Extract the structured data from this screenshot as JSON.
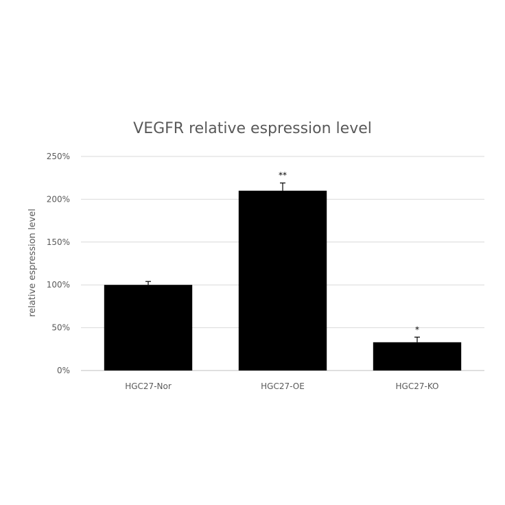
{
  "chart_data": {
    "type": "bar",
    "title": "VEGFR relative espression level",
    "xlabel": "",
    "ylabel": "relative espression level",
    "categories": [
      "HGC27-Nor",
      "HGC27-OE",
      "HGC27-KO"
    ],
    "values": [
      100,
      210,
      33
    ],
    "error": [
      4,
      9,
      6
    ],
    "significance": [
      "",
      "**",
      "*"
    ],
    "ylim": [
      0,
      250
    ],
    "yticks": [
      0,
      50,
      100,
      150,
      200,
      250
    ],
    "ytick_labels": [
      "0%",
      "50%",
      "100%",
      "150%",
      "200%",
      "250%"
    ],
    "grid": true,
    "bar_color": "#000000",
    "grid_color": "#d9d9d9"
  }
}
